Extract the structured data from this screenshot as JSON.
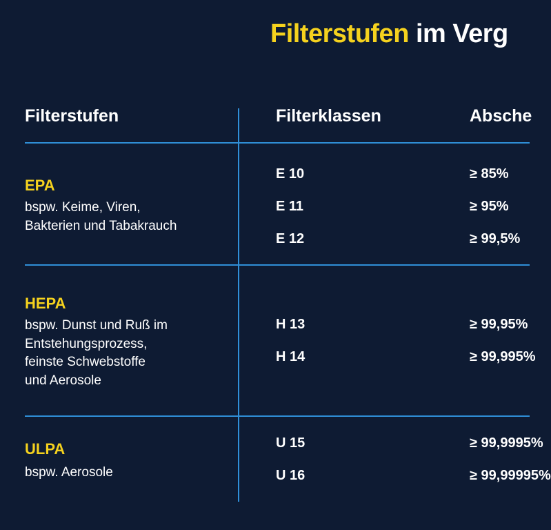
{
  "title": {
    "accent": "Filterstufen",
    "rest": " im Verg"
  },
  "headers": {
    "stage": "Filterstufen",
    "classes": "Filterklassen",
    "efficiency": "Absche"
  },
  "groups": [
    {
      "name": "EPA",
      "desc": [
        "bspw. Keime, Viren,",
        "Bakterien und Tabakrauch"
      ],
      "rows": [
        {
          "cls": "E 10",
          "eff": "≥ 85%"
        },
        {
          "cls": "E 11",
          "eff": "≥ 95%"
        },
        {
          "cls": "E 12",
          "eff": "≥ 99,5%"
        }
      ]
    },
    {
      "name": "HEPA",
      "desc": [
        "bspw. Dunst und Ruß im",
        "Entstehungsprozess,",
        "feinste Schwebstoffe",
        "und Aerosole"
      ],
      "rows": [
        {
          "cls": "H 13",
          "eff": "≥ 99,95%"
        },
        {
          "cls": "H 14",
          "eff": "≥ 99,995%"
        }
      ]
    },
    {
      "name": "ULPA",
      "desc": [
        "bspw. Aerosole"
      ],
      "rows": [
        {
          "cls": "U 15",
          "eff": "≥ 99,9995%"
        },
        {
          "cls": "U 16",
          "eff": "≥ 99,99995%"
        }
      ]
    }
  ]
}
